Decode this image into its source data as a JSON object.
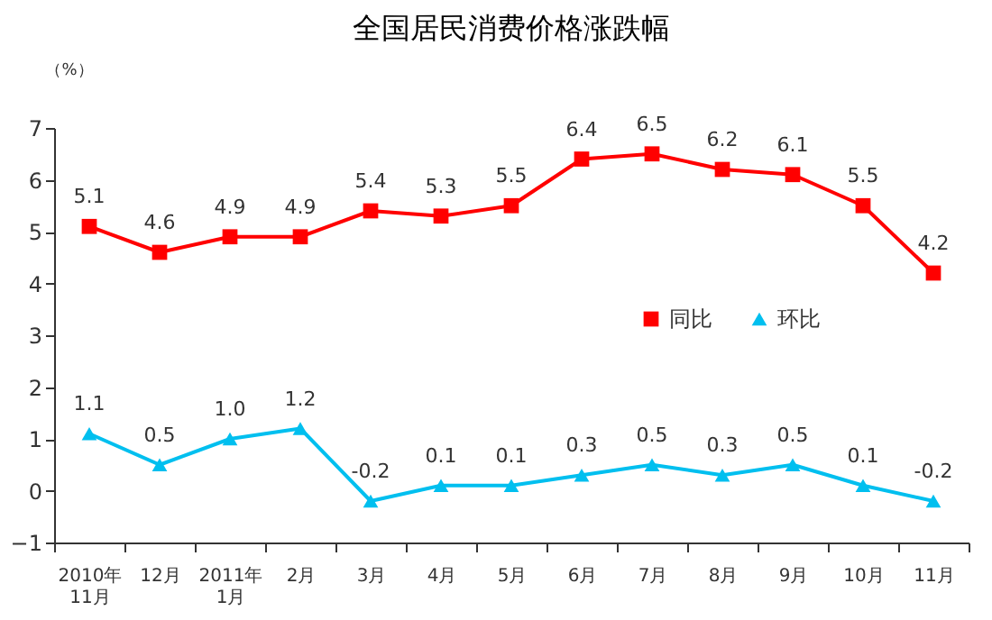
{
  "chart_data": {
    "type": "line",
    "title": "全国居民消费价格涨跌幅",
    "ylabel": "（%）",
    "categories": [
      "2010年\n11月",
      "12月",
      "2011年\n1月",
      "2月",
      "3月",
      "4月",
      "5月",
      "6月",
      "7月",
      "8月",
      "9月",
      "10月",
      "11月"
    ],
    "series": [
      {
        "name": "同比",
        "color": "#ff0000",
        "marker": "square",
        "line_style": "solid",
        "values": [
          5.1,
          4.6,
          4.9,
          4.9,
          5.4,
          5.3,
          5.5,
          6.4,
          6.5,
          6.2,
          6.1,
          5.5,
          4.2
        ],
        "value_labels": [
          "5.1",
          "4.6",
          "4.9",
          "4.9",
          "5.4",
          "5.3",
          "5.5",
          "6.4",
          "6.5",
          "6.2",
          "6.1",
          "5.5",
          "4.2"
        ]
      },
      {
        "name": "环比",
        "color": "#00bfef",
        "marker": "triangle",
        "line_style": "solid",
        "values": [
          1.1,
          0.5,
          1.0,
          1.2,
          -0.2,
          0.1,
          0.1,
          0.3,
          0.5,
          0.3,
          0.5,
          0.1,
          -0.2
        ],
        "value_labels": [
          "1.1",
          "0.5",
          "1.0",
          "1.2",
          "-0.2",
          "0.1",
          "0.1",
          "0.3",
          "0.5",
          "0.3",
          "0.5",
          "0.1",
          "-0.2"
        ]
      }
    ],
    "ylim": [
      -1,
      7
    ],
    "yticks": [
      -1,
      0,
      1,
      2,
      3,
      4,
      5,
      6,
      7
    ],
    "grid": false,
    "legend": "right"
  }
}
